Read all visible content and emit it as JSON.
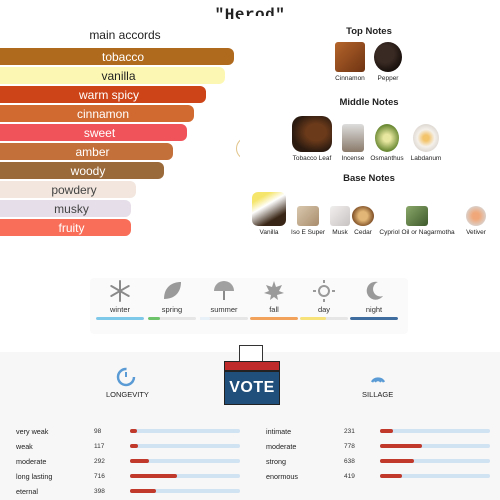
{
  "title": "\"Herod\"",
  "accords": {
    "heading": "main accords",
    "items": [
      {
        "label": "tobacco",
        "color": "#b06a1e",
        "text_color": "#ffffff",
        "strength": 1.0
      },
      {
        "label": "vanilla",
        "color": "#fcf8b4",
        "text_color": "#222222",
        "strength": 0.96
      },
      {
        "label": "warm spicy",
        "color": "#cc4418",
        "text_color": "#ffffff",
        "strength": 0.88
      },
      {
        "label": "cinnamon",
        "color": "#d16a30",
        "text_color": "#ffffff",
        "strength": 0.83
      },
      {
        "label": "sweet",
        "color": "#f0545a",
        "text_color": "#ffffff",
        "strength": 0.8
      },
      {
        "label": "amber",
        "color": "#c4703a",
        "text_color": "#ffffff",
        "strength": 0.74
      },
      {
        "label": "woody",
        "color": "#9b6a3a",
        "text_color": "#ffffff",
        "strength": 0.7
      },
      {
        "label": "powdery",
        "color": "#f2e6de",
        "text_color": "#444444",
        "strength": 0.58
      },
      {
        "label": "musky",
        "color": "#e6dee8",
        "text_color": "#444444",
        "strength": 0.56
      },
      {
        "label": "fruity",
        "color": "#f86e58",
        "text_color": "#ffffff",
        "strength": 0.56
      }
    ]
  },
  "notes": {
    "top": {
      "heading": "Top Notes",
      "items": [
        "Cinnamon",
        "Pepper"
      ]
    },
    "middle": {
      "heading": "Middle Notes",
      "items": [
        "Tobacco Leaf",
        "Incense",
        "Osmanthus",
        "Labdanum"
      ]
    },
    "base": {
      "heading": "Base Notes",
      "items": [
        "Vanilla",
        "Iso E Super",
        "Musk",
        "Cedar",
        "Cypriol Oil or Nagarmotha",
        "Vetiver"
      ]
    }
  },
  "seasons": [
    {
      "label": "winter",
      "icon": "snowflake-icon",
      "color": "#7ec8ea",
      "level": 1.0
    },
    {
      "label": "spring",
      "icon": "leaf-icon",
      "color": "#6cc36a",
      "level": 0.25
    },
    {
      "label": "summer",
      "icon": "umbrella-icon",
      "color": "#e9f1f8",
      "level": 0.2
    },
    {
      "label": "fall",
      "icon": "maple-leaf-icon",
      "color": "#f2a25a",
      "level": 1.0
    },
    {
      "label": "day",
      "icon": "sun-icon",
      "color": "#f7e27a",
      "level": 0.55
    },
    {
      "label": "night",
      "icon": "moon-icon",
      "color": "#3f6da0",
      "level": 1.0
    }
  ],
  "vote": {
    "label": "VOTE"
  },
  "longevity": {
    "heading": "LONGEVITY",
    "rows": [
      {
        "label": "very weak",
        "count": "98",
        "fraction": 0.06
      },
      {
        "label": "weak",
        "count": "117",
        "fraction": 0.07
      },
      {
        "label": "moderate",
        "count": "292",
        "fraction": 0.17
      },
      {
        "label": "long lasting",
        "count": "716",
        "fraction": 0.43
      },
      {
        "label": "eternal",
        "count": "398",
        "fraction": 0.24
      }
    ]
  },
  "sillage": {
    "heading": "SILLAGE",
    "rows": [
      {
        "label": "intimate",
        "count": "231",
        "fraction": 0.12
      },
      {
        "label": "moderate",
        "count": "778",
        "fraction": 0.38
      },
      {
        "label": "strong",
        "count": "638",
        "fraction": 0.31
      },
      {
        "label": "enormous",
        "count": "419",
        "fraction": 0.2
      }
    ]
  }
}
